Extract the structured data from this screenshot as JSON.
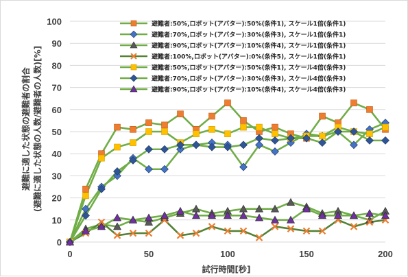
{
  "chart_data": {
    "type": "line",
    "xlabel": "試行時間[秒]",
    "ylabel": "避難に適した状態の避難者の割合",
    "ylabel2": "(避難に適した状態の人数/避難者の人数)[%]",
    "xlim": [
      0,
      200
    ],
    "ylim": [
      0,
      100
    ],
    "xticks": [
      "0",
      "50",
      "100",
      "150",
      "200"
    ],
    "yticks": [
      "0",
      "10",
      "20",
      "30",
      "40",
      "50",
      "60",
      "70",
      "80",
      "90",
      "100"
    ],
    "grid": true,
    "legend_position": "top",
    "x": [
      0,
      10,
      20,
      30,
      40,
      50,
      60,
      70,
      80,
      90,
      100,
      110,
      120,
      130,
      140,
      150,
      160,
      170,
      180,
      190,
      200
    ],
    "series": [
      {
        "name": "避難者:50%,ロボット(アバター):50%(条件1), スケール1倍(条件1)",
        "line_color": "#70ad47",
        "marker": "square",
        "marker_color": "#ed7d31",
        "values": [
          0,
          24,
          40,
          52,
          51,
          54,
          53,
          58,
          51,
          57,
          63,
          55,
          50,
          52,
          49,
          47,
          57,
          54,
          63,
          60,
          51
        ]
      },
      {
        "name": "避難者:70%,ロボット(アバター):30%(条件3), スケール1倍(条件1)",
        "line_color": "#70ad47",
        "marker": "diamond",
        "marker_color": "#4472c4",
        "values": [
          0,
          15,
          25,
          30,
          38,
          33,
          33,
          42,
          44,
          45,
          44,
          34,
          44,
          41,
          45,
          49,
          48,
          50,
          44,
          51,
          54
        ]
      },
      {
        "name": "避難者:90%,ロボット(アバター):10%(条件4), スケール1倍(条件1)",
        "line_color": "#70ad47",
        "marker": "triangle",
        "marker_color": "#595959",
        "values": [
          0,
          6,
          8,
          7,
          10,
          9,
          11,
          13,
          15,
          13,
          14,
          15,
          15,
          15,
          18,
          16,
          13,
          14,
          12,
          10,
          14
        ]
      },
      {
        "name": "避難者:100%,ロボット(アバター):0%(条件5), スケール1倍(条件1)",
        "line_color": "#548235",
        "marker": "x",
        "marker_color": "#ed7d31",
        "values": [
          0,
          4,
          9,
          3,
          4,
          4,
          10,
          3,
          4,
          7,
          5,
          5,
          2,
          7,
          6,
          5,
          5,
          10,
          7,
          9,
          10
        ]
      },
      {
        "name": "避難者:50%,ロボット(アバター):50%(条件1), スケール4倍(条件3)",
        "line_color": "#70ad47",
        "marker": "square",
        "marker_color": "#ffc000",
        "values": [
          0,
          21,
          38,
          43,
          45,
          50,
          50,
          45,
          49,
          51,
          49,
          52,
          52,
          49,
          47,
          48,
          48,
          52,
          50,
          49,
          52
        ]
      },
      {
        "name": "避難者:70%,ロボット(アバター):30%(条件3), スケール4倍(条件3)",
        "line_color": "#70ad47",
        "marker": "diamond",
        "marker_color": "#2f5597",
        "values": [
          0,
          12,
          24,
          32,
          37,
          42,
          42,
          44,
          44,
          43,
          43,
          44,
          47,
          46,
          47,
          47,
          45,
          50,
          50,
          46,
          46
        ]
      },
      {
        "name": "避難者:90%,ロボット(アバター):10%(条件4), スケール4倍(条件3)",
        "line_color": "#70ad47",
        "marker": "triangle",
        "marker_color": "#7030a0",
        "values": [
          0,
          5,
          7,
          11,
          10,
          11,
          12,
          14,
          12,
          12,
          12,
          12,
          11,
          10,
          10,
          15,
          12,
          12,
          12,
          13,
          12
        ]
      }
    ]
  }
}
